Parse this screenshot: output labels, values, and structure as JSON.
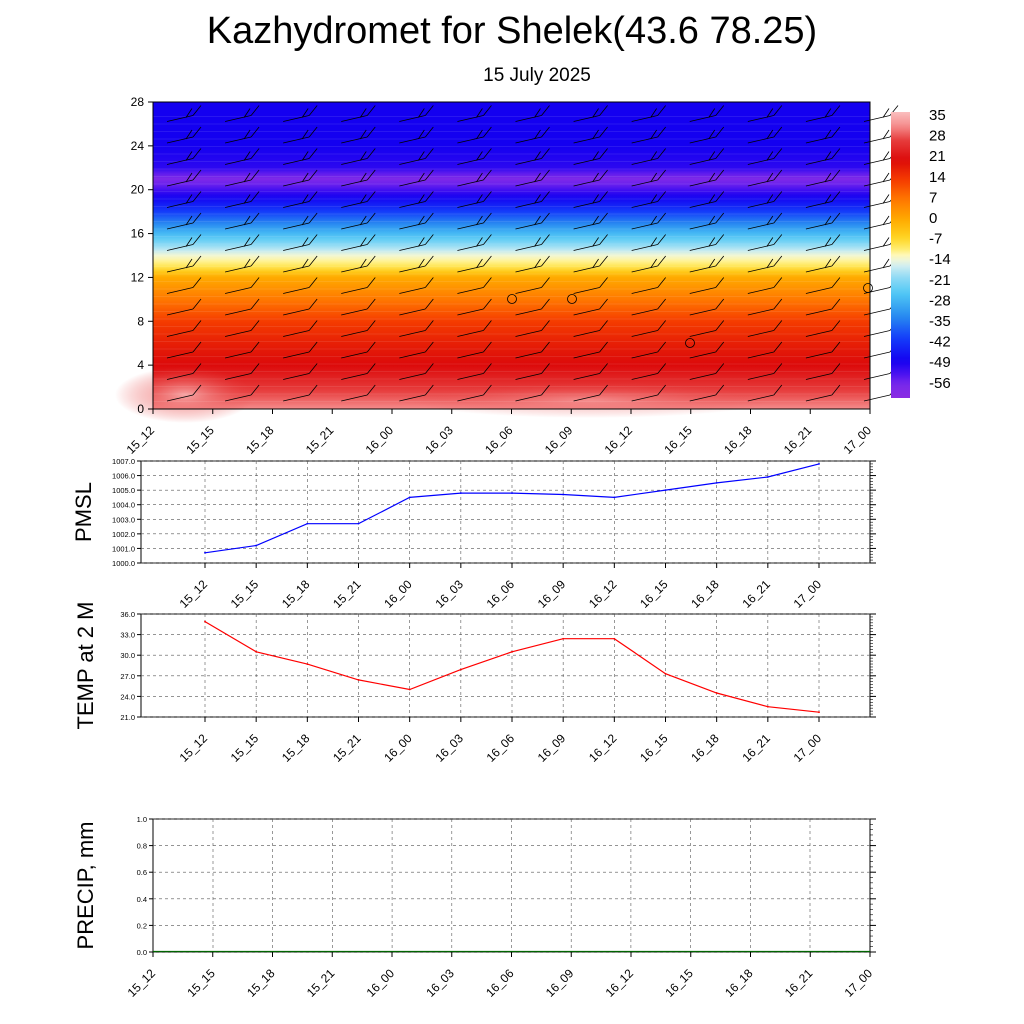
{
  "title": "Kazhydromet for Shelek(43.6 78.25)",
  "subtitle": "15 July 2025",
  "chart_data": [
    {
      "type": "heatmap",
      "panel": "vertical-cross-section",
      "x_labels": [
        "15_12",
        "15_15",
        "15_18",
        "15_21",
        "16_00",
        "16_03",
        "16_06",
        "16_09",
        "16_12",
        "16_15",
        "16_18",
        "16_21",
        "17_00"
      ],
      "y_ticks": [
        0,
        4,
        8,
        12,
        16,
        20,
        24,
        28
      ],
      "ylim": [
        0,
        28
      ],
      "colorbar_labels": [
        35,
        28,
        21,
        14,
        7,
        0,
        -7,
        -14,
        -21,
        -28,
        -35,
        -42,
        -49,
        -56
      ],
      "colorbar_range": [
        -63,
        38
      ],
      "temperature_profile": {
        "heights": [
          0,
          2,
          4,
          6,
          8,
          10,
          12,
          13,
          14,
          16,
          18,
          20,
          21,
          22,
          24,
          28
        ],
        "values": [
          33,
          27,
          21,
          18,
          14,
          7,
          0,
          -9,
          -14,
          -28,
          -42,
          -54,
          -60,
          -52,
          -50,
          -50
        ]
      },
      "wind_barbs": true
    },
    {
      "type": "line",
      "ylabel": "PMSL",
      "x": [
        "15_12",
        "15_15",
        "15_18",
        "15_21",
        "16_00",
        "16_03",
        "16_06",
        "16_09",
        "16_12",
        "16_15",
        "16_18",
        "16_21",
        "17_00"
      ],
      "y_ticks": [
        "1000.0",
        "1001.0",
        "1002.0",
        "1003.0",
        "1004.0",
        "1005.0",
        "1006.0",
        "1007.0"
      ],
      "ylim": [
        1000,
        1007
      ],
      "grid": true,
      "series": [
        {
          "color": "#0000ff",
          "values": [
            1000.7,
            1001.2,
            1002.7,
            1002.7,
            1004.5,
            1004.8,
            1004.8,
            1004.7,
            1004.5,
            1005.0,
            1005.5,
            1005.9,
            1006.8
          ]
        }
      ]
    },
    {
      "type": "line",
      "ylabel": "TEMP at 2 M",
      "x": [
        "15_12",
        "15_15",
        "15_18",
        "15_21",
        "16_00",
        "16_03",
        "16_06",
        "16_09",
        "16_12",
        "16_15",
        "16_18",
        "16_21",
        "17_00"
      ],
      "y_ticks": [
        "21.0",
        "24.0",
        "27.0",
        "30.0",
        "33.0",
        "36.0"
      ],
      "ylim": [
        21,
        36
      ],
      "grid": true,
      "series": [
        {
          "color": "#ff0000",
          "values": [
            34.9,
            30.5,
            28.7,
            26.4,
            25.0,
            27.9,
            30.5,
            32.4,
            32.4,
            27.3,
            24.5,
            22.5,
            21.7
          ]
        }
      ]
    },
    {
      "type": "bar",
      "ylabel": "PRECIP, mm",
      "x": [
        "15_12",
        "15_15",
        "15_18",
        "15_21",
        "16_00",
        "16_03",
        "16_06",
        "16_09",
        "16_12",
        "16_15",
        "16_18",
        "16_21",
        "17_00"
      ],
      "y_ticks": [
        "0.0",
        "0.2",
        "0.4",
        "0.6",
        "0.8",
        "1.0"
      ],
      "ylim": [
        0,
        1
      ],
      "grid": true,
      "series": [
        {
          "color": "#006400",
          "values": [
            0,
            0,
            0,
            0,
            0,
            0,
            0,
            0,
            0,
            0,
            0,
            0,
            0
          ]
        }
      ]
    }
  ]
}
